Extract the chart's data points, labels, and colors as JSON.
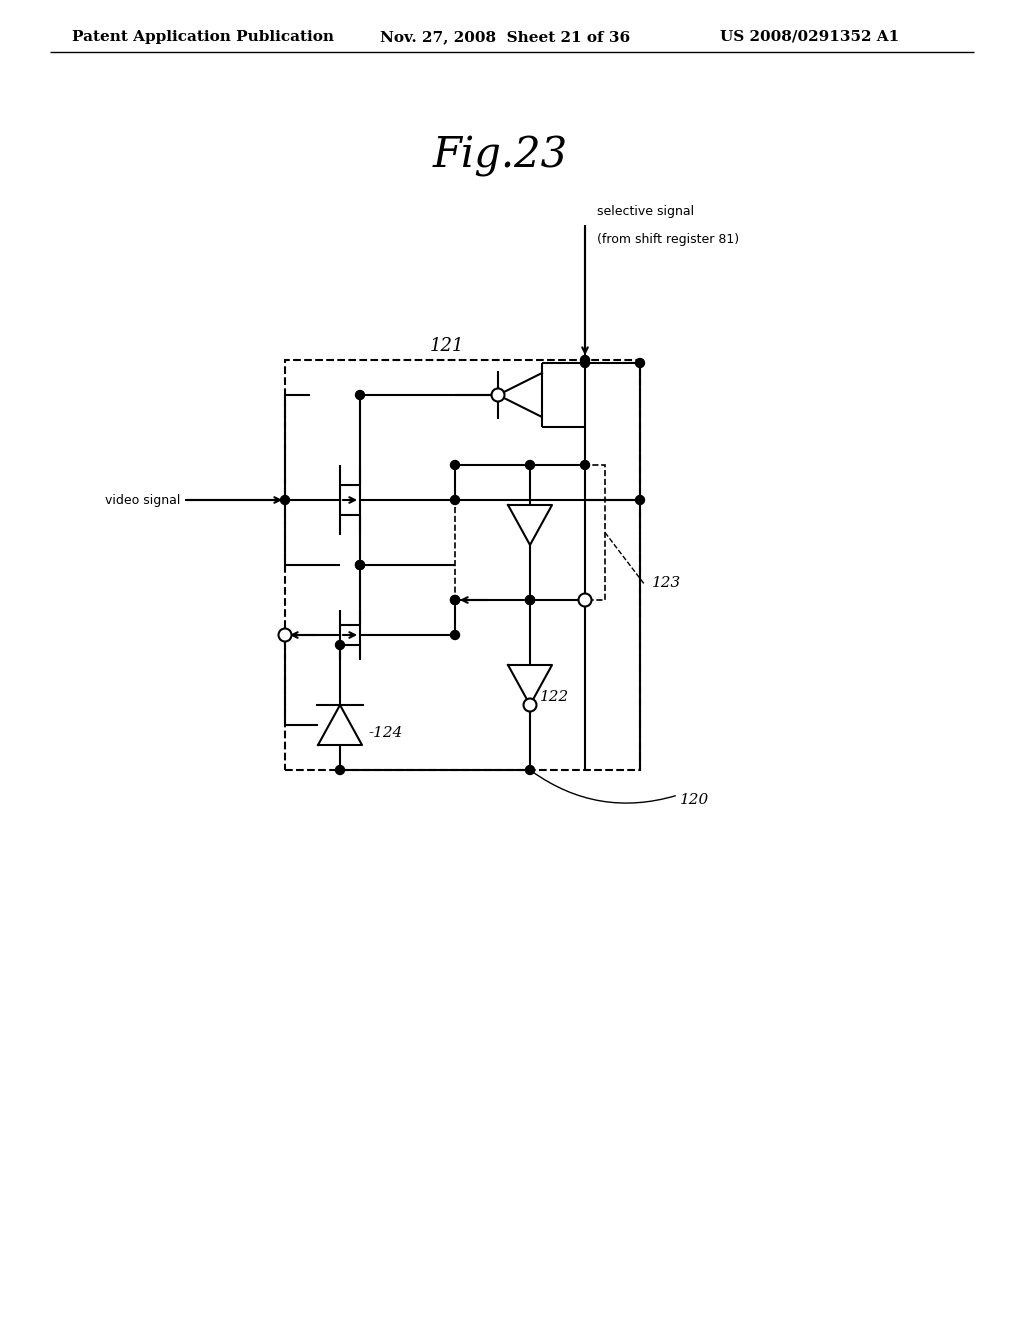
{
  "title": "Fig.23",
  "header_left": "Patent Application Publication",
  "header_mid": "Nov. 27, 2008  Sheet 21 of 36",
  "header_right": "US 2008/0291352 A1",
  "bg_color": "#ffffff",
  "label_121": "121",
  "label_122": "122",
  "label_123": "123",
  "label_124": "124",
  "label_120": "120",
  "label_video": "video signal",
  "label_selective_1": "selective signal",
  "label_selective_2": "(from shift register 81)",
  "fig_title_fontsize": 30,
  "header_fontsize": 11
}
